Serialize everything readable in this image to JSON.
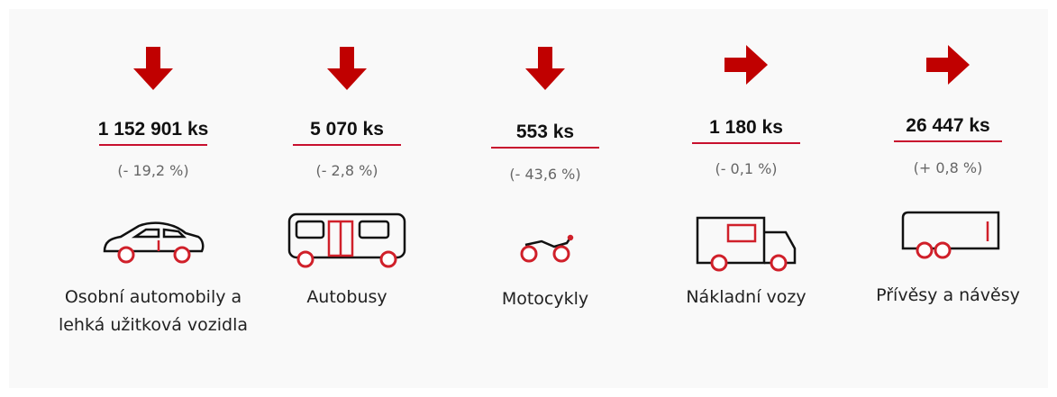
{
  "items": [
    {
      "value": "1 152 901 ks",
      "change": "(- 19,2 %)",
      "label": "Osobní automobily a lehká užitková vozidla",
      "arrow": "down"
    },
    {
      "value": "5 070 ks",
      "change": "(- 2,8 %)",
      "label": "Autobusy",
      "arrow": "down"
    },
    {
      "value": "553 ks",
      "change": "(- 43,6 %)",
      "label": "Motocykly",
      "arrow": "down"
    },
    {
      "value": "1 180 ks",
      "change": "(- 0,1 %)",
      "label": "Nákladní vozy",
      "arrow": "right"
    },
    {
      "value": "26 447 ks",
      "change": "(+ 0,8 %)",
      "label": "Přívěsy a návěsy",
      "arrow": "right"
    }
  ]
}
